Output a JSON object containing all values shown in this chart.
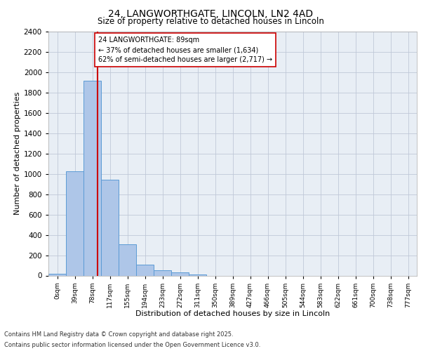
{
  "title_line1": "24, LANGWORTHGATE, LINCOLN, LN2 4AD",
  "title_line2": "Size of property relative to detached houses in Lincoln",
  "xlabel": "Distribution of detached houses by size in Lincoln",
  "ylabel": "Number of detached properties",
  "bar_labels": [
    "0sqm",
    "39sqm",
    "78sqm",
    "117sqm",
    "155sqm",
    "194sqm",
    "233sqm",
    "272sqm",
    "311sqm",
    "350sqm",
    "389sqm",
    "427sqm",
    "466sqm",
    "505sqm",
    "544sqm",
    "583sqm",
    "622sqm",
    "661sqm",
    "700sqm",
    "738sqm",
    "777sqm"
  ],
  "bar_values": [
    20,
    1025,
    1920,
    940,
    310,
    110,
    55,
    30,
    12,
    0,
    0,
    0,
    0,
    0,
    0,
    0,
    0,
    0,
    0,
    0,
    0
  ],
  "bar_color": "#aec6e8",
  "bar_edgecolor": "#5b9bd5",
  "vline_x": 89,
  "vline_color": "#cc0000",
  "annotation_text": "24 LANGWORTHGATE: 89sqm\n← 37% of detached houses are smaller (1,634)\n62% of semi-detached houses are larger (2,717) →",
  "annotation_box_edgecolor": "#cc0000",
  "annotation_box_facecolor": "#ffffff",
  "ylim": [
    0,
    2400
  ],
  "yticks": [
    0,
    200,
    400,
    600,
    800,
    1000,
    1200,
    1400,
    1600,
    1800,
    2000,
    2200,
    2400
  ],
  "grid_color": "#c0c8d8",
  "plot_bg_color": "#e8eef5",
  "footer_line1": "Contains HM Land Registry data © Crown copyright and database right 2025.",
  "footer_line2": "Contains public sector information licensed under the Open Government Licence v3.0.",
  "bin_width": 39
}
